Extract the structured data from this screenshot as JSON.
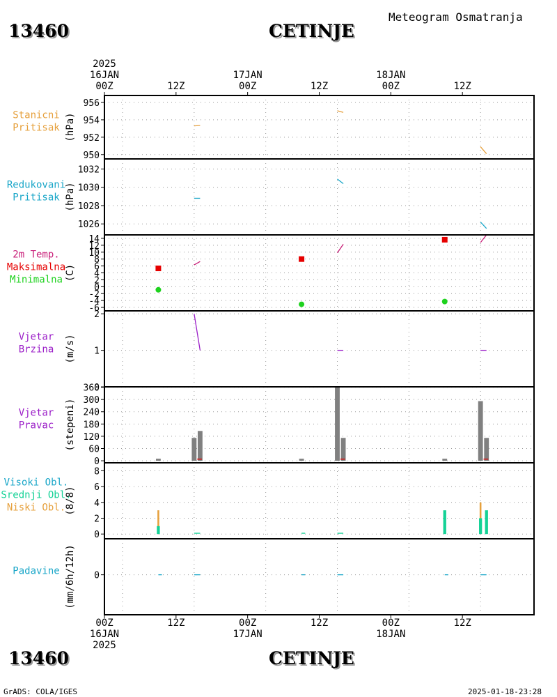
{
  "header": {
    "station_id": "13460",
    "station_name": "CETINJE",
    "title": "Meteogram Osmatranja"
  },
  "footer": {
    "station_id": "13460",
    "station_name": "CETINJE",
    "credit": "GrADS: COLA/IGES",
    "timestamp": "2025-01-18-23:28"
  },
  "colors": {
    "orange": "#e6a03c",
    "cyan": "#19a6c8",
    "red": "#e60000",
    "green": "#1ed21e",
    "purple": "#9b1ec8",
    "magenta": "#c81e78",
    "gray": "#808080",
    "teal": "#14d296",
    "grid": "#888888"
  },
  "chart_data": {
    "type": "meteogram",
    "time_axis": {
      "start": "2025-01-16 00Z",
      "end": "2025-01-18 24Z",
      "top_labels": [
        {
          "hour": 0,
          "lines": [
            "2025",
            "16JAN",
            "00Z"
          ]
        },
        {
          "hour": 12,
          "lines": [
            "12Z"
          ]
        },
        {
          "hour": 24,
          "lines": [
            "17JAN",
            "00Z"
          ]
        },
        {
          "hour": 36,
          "lines": [
            "12Z"
          ]
        },
        {
          "hour": 48,
          "lines": [
            "18JAN",
            "00Z"
          ]
        },
        {
          "hour": 60,
          "lines": [
            "12Z"
          ]
        }
      ],
      "bottom_labels": [
        {
          "hour": 0,
          "lines": [
            "00Z",
            "16JAN",
            "2025"
          ]
        },
        {
          "hour": 12,
          "lines": [
            "12Z"
          ]
        },
        {
          "hour": 24,
          "lines": [
            "00Z",
            "17JAN"
          ]
        },
        {
          "hour": 36,
          "lines": [
            "12Z"
          ]
        },
        {
          "hour": 48,
          "lines": [
            "00Z",
            "18JAN"
          ]
        },
        {
          "hour": 60,
          "lines": [
            "12Z"
          ]
        }
      ]
    },
    "panels": [
      {
        "id": "station-pressure",
        "labels": [
          {
            "text": "Stanicni",
            "color": "orange"
          },
          {
            "text": "Pritisak",
            "color": "orange"
          }
        ],
        "unit": "(hPa)",
        "ylim": [
          949.5,
          956.8
        ],
        "ticks": [
          950,
          952,
          954,
          956
        ],
        "series": [
          {
            "kind": "segments",
            "color": "orange",
            "segments": [
              [
                [
                  12.0,
                  953.3
                ],
                [
                  13.0,
                  953.35
                ]
              ],
              [
                [
                  36.0,
                  955.05
                ],
                [
                  37.0,
                  954.85
                ]
              ],
              [
                [
                  60.0,
                  950.9
                ],
                [
                  61.0,
                  950.1
                ]
              ]
            ]
          }
        ]
      },
      {
        "id": "reduced-pressure",
        "labels": [
          {
            "text": "Redukovani",
            "color": "cyan"
          },
          {
            "text": "Pritisak",
            "color": "cyan"
          }
        ],
        "unit": "(hPa)",
        "ylim": [
          1024.8,
          1033.1
        ],
        "ticks": [
          1026,
          1028,
          1030,
          1032
        ],
        "series": [
          {
            "kind": "segments",
            "color": "cyan",
            "segments": [
              [
                [
                  12.0,
                  1028.8
                ],
                [
                  13.0,
                  1028.8
                ]
              ],
              [
                [
                  36.0,
                  1030.9
                ],
                [
                  37.0,
                  1030.4
                ]
              ],
              [
                [
                  60.0,
                  1026.2
                ],
                [
                  61.0,
                  1025.5
                ]
              ]
            ]
          }
        ]
      },
      {
        "id": "temperature",
        "labels": [
          {
            "text": "2m Temp.",
            "color": "magenta"
          },
          {
            "text": "Maksimalna",
            "color": "red"
          },
          {
            "text": "Minimalna",
            "color": "green"
          }
        ],
        "unit": "(C)",
        "ylim": [
          -7,
          15
        ],
        "ticks": [
          -6,
          -4,
          -2,
          0,
          2,
          4,
          6,
          8,
          10,
          12,
          14
        ],
        "series": [
          {
            "kind": "segments",
            "color": "magenta",
            "segments": [
              [
                [
                  12.0,
                  6.3
                ],
                [
                  13.0,
                  7.3
                ]
              ],
              [
                [
                  36.0,
                  9.8
                ],
                [
                  37.0,
                  12.3
                ]
              ],
              [
                [
                  60.0,
                  12.8
                ],
                [
                  61.0,
                  15.0
                ]
              ]
            ]
          },
          {
            "kind": "squares",
            "color": "red",
            "points": [
              [
                6.0,
                5.3
              ],
              [
                30.0,
                8.0
              ],
              [
                54.0,
                13.6
              ]
            ]
          },
          {
            "kind": "dots",
            "color": "green",
            "points": [
              [
                6.0,
                -0.9
              ],
              [
                30.0,
                -5.1
              ],
              [
                54.0,
                -4.3
              ]
            ]
          }
        ]
      },
      {
        "id": "wind-speed",
        "labels": [
          {
            "text": "Vjetar",
            "color": "purple"
          },
          {
            "text": "Brzina",
            "color": "purple"
          }
        ],
        "unit": "(m/s)",
        "ylim": [
          0,
          2.08
        ],
        "ticks": [
          0,
          1,
          2
        ],
        "series": [
          {
            "kind": "segments",
            "color": "purple",
            "segments": [
              [
                [
                  12.0,
                  2.0
                ],
                [
                  13.0,
                  1.0
                ]
              ],
              [
                [
                  36.0,
                  1.0
                ],
                [
                  37.0,
                  1.0
                ]
              ],
              [
                [
                  60.0,
                  1.0
                ],
                [
                  61.0,
                  1.0
                ]
              ]
            ]
          }
        ]
      },
      {
        "id": "wind-direction",
        "labels": [
          {
            "text": "Vjetar",
            "color": "purple"
          },
          {
            "text": "Pravac",
            "color": "purple"
          }
        ],
        "unit": "(stepeni)",
        "ylim": [
          -10,
          362
        ],
        "ticks": [
          0,
          60,
          120,
          180,
          240,
          300,
          360
        ],
        "tick_labels": [
          "0",
          "60",
          "120",
          "180",
          "240",
          "300",
          "360"
        ],
        "series": [
          {
            "kind": "bars",
            "color": "gray",
            "width_h": 0.8,
            "points": [
              [
                6.0,
                10
              ],
              [
                12.0,
                112
              ],
              [
                13.0,
                146
              ],
              [
                30.0,
                10
              ],
              [
                36.0,
                360
              ],
              [
                37.0,
                112
              ],
              [
                54.0,
                10
              ],
              [
                60.0,
                292
              ],
              [
                61.0,
                112
              ]
            ]
          },
          {
            "kind": "segments",
            "color": "red",
            "segments": [
              [
                [
                  12.5,
                  8
                ],
                [
                  13.3,
                  8
                ]
              ],
              [
                [
                  36.5,
                  8
                ],
                [
                  37.3,
                  8
                ]
              ],
              [
                [
                  60.5,
                  8
                ],
                [
                  61.3,
                  8
                ]
              ]
            ]
          }
        ]
      },
      {
        "id": "cloud-cover",
        "labels": [
          {
            "text": "Visoki Obl.",
            "color": "cyan"
          },
          {
            "text": "Srednji Obl.",
            "color": "teal"
          },
          {
            "text": "Niski Obl.",
            "color": "orange"
          }
        ],
        "unit": "(8/8)",
        "ylim": [
          -0.6,
          9.0
        ],
        "ticks": [
          0,
          2,
          4,
          6,
          8
        ],
        "series": [
          {
            "kind": "bars",
            "color": "orange",
            "width_h": 0.3,
            "points": [
              [
                6.0,
                3
              ],
              [
                60.0,
                4
              ]
            ]
          },
          {
            "kind": "bars",
            "color": "teal",
            "width_h": 0.5,
            "points": [
              [
                6.0,
                1
              ],
              [
                54.0,
                3
              ],
              [
                60.0,
                2
              ],
              [
                61.0,
                3
              ]
            ]
          },
          {
            "kind": "segments",
            "color": "teal",
            "segments": [
              [
                [
                  12.0,
                  0.1
                ],
                [
                  13.0,
                  0.1
                ]
              ],
              [
                [
                  30.0,
                  0.1
                ],
                [
                  30.6,
                  0.1
                ]
              ],
              [
                [
                  36.0,
                  0.1
                ],
                [
                  37.0,
                  0.1
                ]
              ]
            ]
          }
        ]
      },
      {
        "id": "precipitation",
        "labels": [
          {
            "text": "Padavine",
            "color": "cyan"
          }
        ],
        "unit": "(mm/6h/12h)",
        "ylim": [
          -5,
          4.5
        ],
        "ticks": [
          0
        ],
        "series": [
          {
            "kind": "segments",
            "color": "cyan",
            "segments": [
              [
                [
                  6.0,
                  0
                ],
                [
                  6.6,
                  0
                ]
              ],
              [
                [
                  12.0,
                  0
                ],
                [
                  13.0,
                  0
                ]
              ],
              [
                [
                  30.0,
                  0
                ],
                [
                  30.6,
                  0
                ]
              ],
              [
                [
                  36.0,
                  0
                ],
                [
                  37.0,
                  0
                ]
              ],
              [
                [
                  54.0,
                  0
                ],
                [
                  54.6,
                  0
                ]
              ],
              [
                [
                  60.0,
                  0
                ],
                [
                  61.0,
                  0
                ]
              ]
            ]
          }
        ]
      }
    ]
  }
}
